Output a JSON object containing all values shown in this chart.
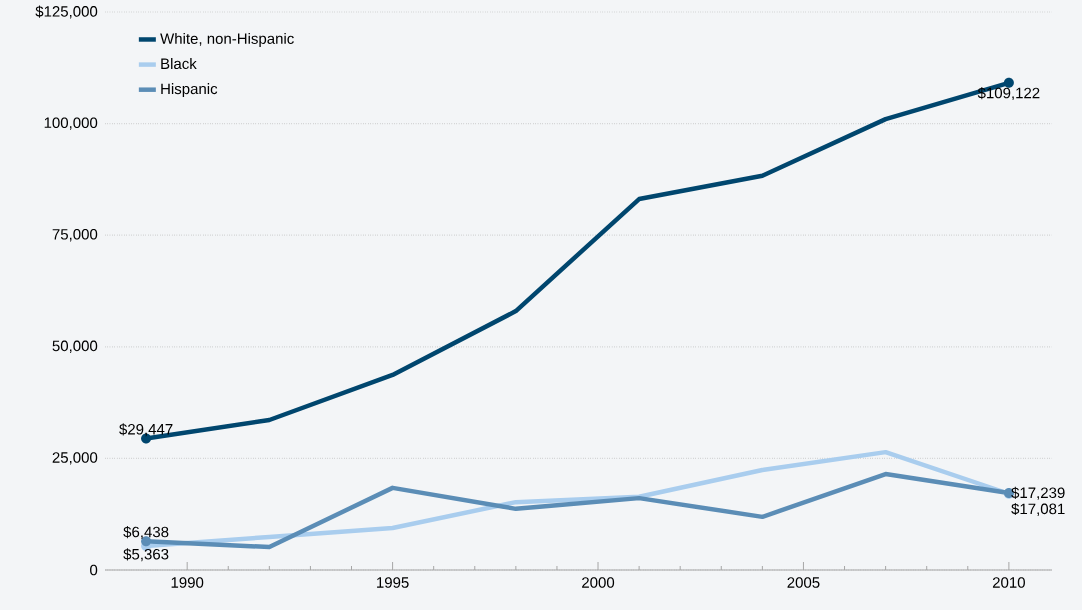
{
  "chart_data": {
    "type": "line",
    "x": [
      1989,
      1992,
      1995,
      1998,
      2001,
      2004,
      2007,
      2010
    ],
    "series": [
      {
        "name": "White, non-Hispanic",
        "color": "#00466e",
        "values": [
          29447,
          33600,
          43700,
          58000,
          83100,
          88300,
          101000,
          109122
        ],
        "value_labels": [
          "$29,447",
          null,
          null,
          null,
          null,
          null,
          null,
          "$109,122"
        ]
      },
      {
        "name": "Black",
        "color": "#a9cdee",
        "values": [
          5363,
          7400,
          9400,
          15200,
          16400,
          22400,
          26400,
          17081
        ],
        "value_labels": [
          "$5,363",
          null,
          null,
          null,
          null,
          null,
          null,
          "$17,081"
        ]
      },
      {
        "name": "Hispanic",
        "color": "#5b8db6",
        "values": [
          6438,
          5150,
          18400,
          13700,
          16100,
          11900,
          21500,
          17239
        ],
        "value_labels": [
          "$6,438",
          null,
          null,
          null,
          null,
          null,
          null,
          "$17,239"
        ]
      }
    ],
    "xlim": [
      1988,
      2011.05
    ],
    "xticks": [
      1990,
      1995,
      2000,
      2005,
      2010
    ],
    "ylim": [
      0,
      125000
    ],
    "yticks": [
      {
        "value": 0,
        "label": "0"
      },
      {
        "value": 25000,
        "label": "25,000"
      },
      {
        "value": 50000,
        "label": "50,000"
      },
      {
        "value": 75000,
        "label": "75,000"
      },
      {
        "value": 100000,
        "label": "100,000"
      },
      {
        "value": 125000,
        "label": "$125,000"
      }
    ],
    "grid": "y",
    "legend": "top left",
    "line_style": "solid"
  }
}
